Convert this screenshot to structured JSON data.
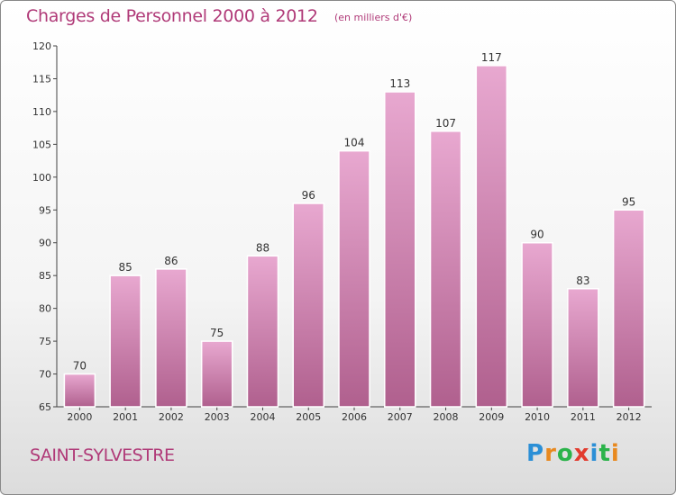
{
  "title": "Charges de Personnel 2000 à 2012",
  "unit": "(en milliers d'€)",
  "place": "SAINT-SYLVESTRE",
  "logo": {
    "letters": [
      "P",
      "r",
      "o",
      "x",
      "i",
      "t",
      "i"
    ],
    "colors": [
      "#2b8fd6",
      "#e8891f",
      "#2bb34a",
      "#e23b2e",
      "#2b8fd6",
      "#2bb34a",
      "#e8891f"
    ]
  },
  "colors": {
    "accent": "#b03a78",
    "bar_top": "#e8a8d0",
    "bar_bottom": "#b0608e"
  },
  "chart_data": {
    "type": "bar",
    "title": "Charges de Personnel 2000 à 2012",
    "subtitle": "(en milliers d'€)",
    "categories": [
      "2000",
      "2001",
      "2002",
      "2003",
      "2004",
      "2005",
      "2006",
      "2007",
      "2008",
      "2009",
      "2010",
      "2011",
      "2012"
    ],
    "values": [
      70,
      85,
      86,
      75,
      88,
      96,
      104,
      113,
      107,
      117,
      90,
      83,
      95
    ],
    "ylim": [
      65,
      120
    ],
    "yticks": [
      65,
      70,
      75,
      80,
      85,
      90,
      95,
      100,
      105,
      110,
      115,
      120
    ],
    "grid": false,
    "data_labels": true
  }
}
